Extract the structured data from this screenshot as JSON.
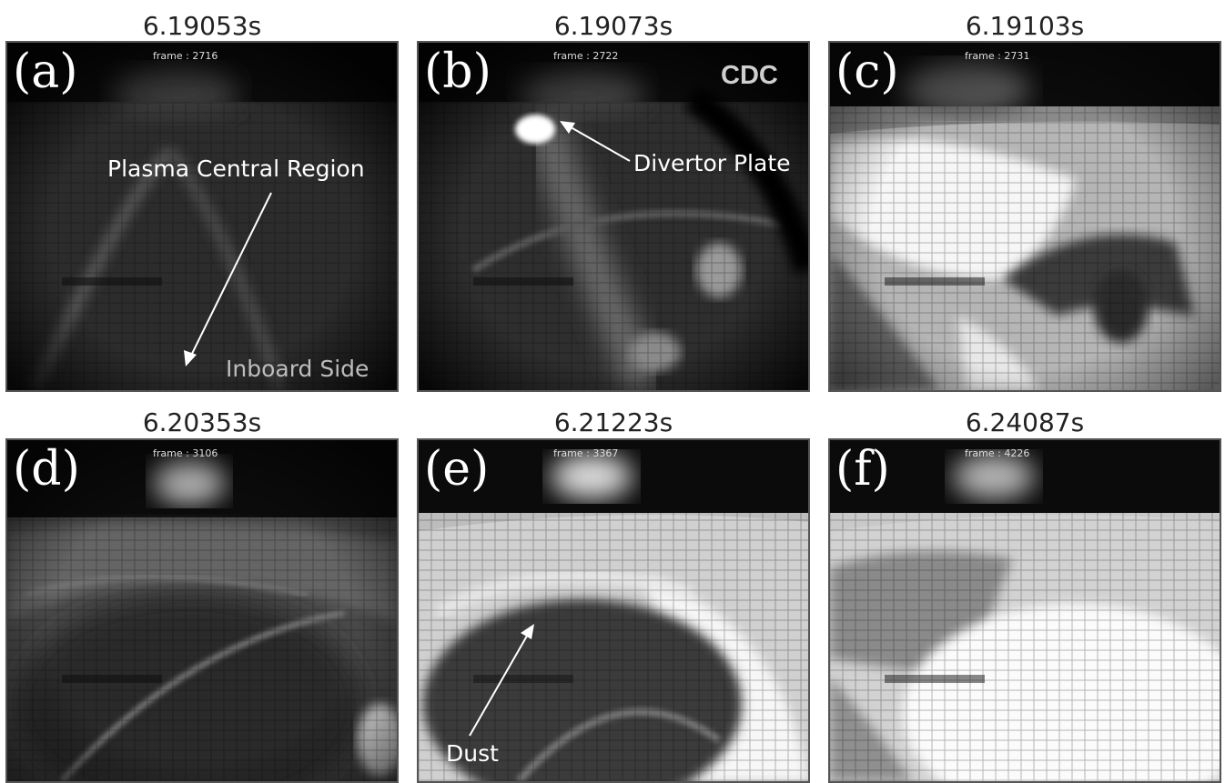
{
  "panels": [
    {
      "time": "6.19053s",
      "letter": "(a)",
      "frame": "frame : 2716"
    },
    {
      "time": "6.19073s",
      "letter": "(b)",
      "frame": "frame : 2722"
    },
    {
      "time": "6.19103s",
      "letter": "(c)",
      "frame": "frame : 2731"
    },
    {
      "time": "6.20353s",
      "letter": "(d)",
      "frame": "frame : 3106"
    },
    {
      "time": "6.21223s",
      "letter": "(e)",
      "frame": "frame : 3367"
    },
    {
      "time": "6.24087s",
      "letter": "(f)",
      "frame": "frame : 4226"
    }
  ],
  "annotations": {
    "plasma_central_region": "Plasma Central Region",
    "inboard_side": "Inboard Side",
    "divertor_plate": "Divertor Plate",
    "cdc": "CDC",
    "dust": "Dust"
  }
}
